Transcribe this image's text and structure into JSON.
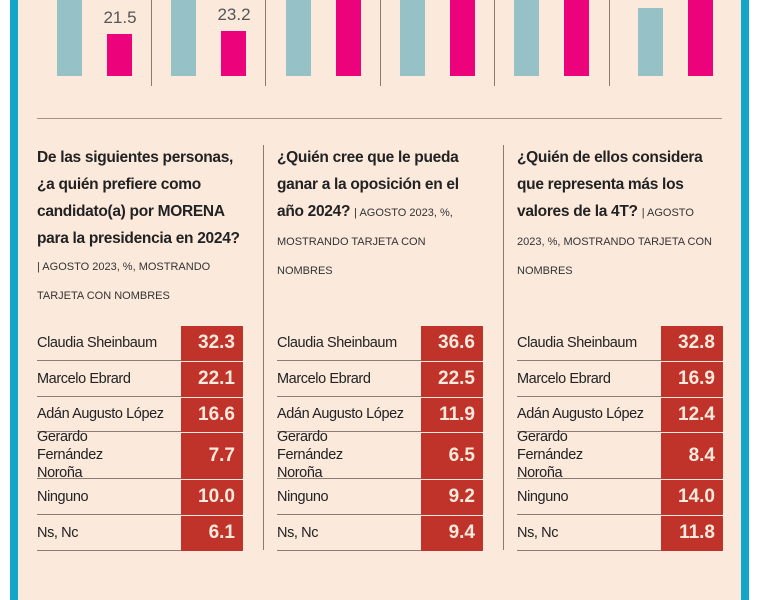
{
  "chart_data": {
    "type": "bar",
    "bar_colors": [
      "#96c1c7",
      "#ec037c"
    ],
    "groups": [
      {
        "values": [
          null,
          21.5
        ]
      },
      {
        "values": [
          null,
          23.2
        ]
      },
      {
        "values": [
          null,
          null
        ]
      },
      {
        "values": [
          null,
          null
        ]
      },
      {
        "values": [
          null,
          null
        ]
      },
      {
        "values": [
          34.8,
          null
        ]
      }
    ]
  },
  "panels": [
    {
      "question": "De las siguientes personas, ¿a quién prefiere como candidato(a) por MORENA para la presidencia en 2024?",
      "note": "| AGOSTO 2023, %, MOSTRANDO TARJETA CON NOMBRES",
      "rows": [
        {
          "name": "Claudia Sheinbaum",
          "value": "32.3"
        },
        {
          "name": "Marcelo Ebrard",
          "value": "22.1"
        },
        {
          "name": "Adán Augusto López",
          "value": "16.6"
        },
        {
          "name": "Gerardo Fernández Noroña",
          "value": "7.7"
        },
        {
          "name": "Ninguno",
          "value": "10.0"
        },
        {
          "name": "Ns, Nc",
          "value": "6.1"
        }
      ]
    },
    {
      "question": "¿Quién cree que le pueda ganar a la oposición en el año 2024?",
      "note": "| AGOSTO 2023, %, MOSTRANDO TARJETA CON NOMBRES",
      "rows": [
        {
          "name": "Claudia Sheinbaum",
          "value": "36.6"
        },
        {
          "name": "Marcelo Ebrard",
          "value": "22.5"
        },
        {
          "name": "Adán Augusto López",
          "value": "11.9"
        },
        {
          "name": "Gerardo Fernández Noroña",
          "value": "6.5"
        },
        {
          "name": "Ninguno",
          "value": "9.2"
        },
        {
          "name": "Ns, Nc",
          "value": "9.4"
        }
      ]
    },
    {
      "question": "¿Quién de ellos considera que representa más los valores de la 4T?",
      "note": "| AGOSTO 2023, %, MOSTRANDO TARJETA CON NOMBRES",
      "rows": [
        {
          "name": "Claudia Sheinbaum",
          "value": "32.8"
        },
        {
          "name": "Marcelo Ebrard",
          "value": "16.9"
        },
        {
          "name": "Adán Augusto López",
          "value": "12.4"
        },
        {
          "name": "Gerardo Fernández Noroña",
          "value": "8.4"
        },
        {
          "name": "Ninguno",
          "value": "14.0"
        },
        {
          "name": "Ns, Nc",
          "value": "11.8"
        }
      ]
    }
  ]
}
